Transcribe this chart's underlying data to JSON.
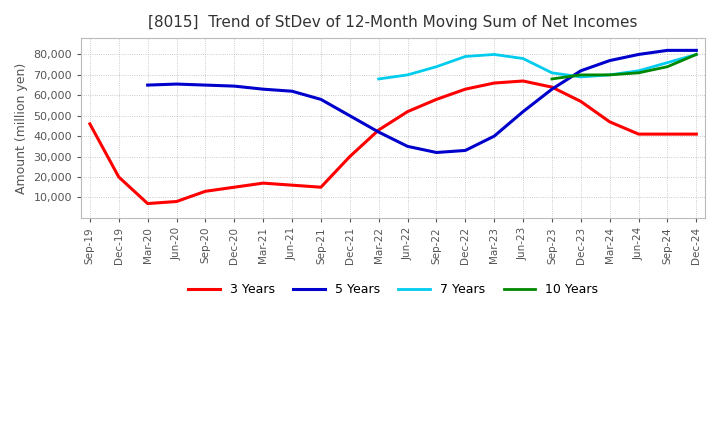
{
  "title": "[8015]  Trend of StDev of 12-Month Moving Sum of Net Incomes",
  "ylabel": "Amount (million yen)",
  "ylim": [
    0,
    88000
  ],
  "yticks": [
    10000,
    20000,
    30000,
    40000,
    50000,
    60000,
    70000,
    80000
  ],
  "background_color": "#ffffff",
  "plot_bg_color": "#ffffff",
  "grid_color": "#aaaaaa",
  "legend_labels": [
    "3 Years",
    "5 Years",
    "7 Years",
    "10 Years"
  ],
  "legend_colors": [
    "#ff0000",
    "#0000cc",
    "#00ccee",
    "#008800"
  ],
  "x_labels": [
    "Sep-19",
    "Dec-19",
    "Mar-20",
    "Jun-20",
    "Sep-20",
    "Dec-20",
    "Mar-21",
    "Jun-21",
    "Sep-21",
    "Dec-21",
    "Mar-22",
    "Jun-22",
    "Sep-22",
    "Dec-22",
    "Mar-23",
    "Jun-23",
    "Sep-23",
    "Dec-23",
    "Mar-24",
    "Jun-24",
    "Sep-24",
    "Dec-24"
  ],
  "series_3y": [
    46000,
    20000,
    7000,
    8000,
    13000,
    15000,
    17000,
    16000,
    15000,
    30000,
    43000,
    52000,
    58000,
    63000,
    66000,
    67000,
    64000,
    57000,
    47000,
    41000,
    41000,
    41000
  ],
  "series_5y": [
    null,
    null,
    65000,
    65500,
    65000,
    64500,
    63000,
    62000,
    58000,
    50000,
    42000,
    35000,
    32000,
    33000,
    40000,
    52000,
    63000,
    72000,
    77000,
    80000,
    82000,
    82000
  ],
  "series_7y": [
    null,
    null,
    null,
    null,
    null,
    null,
    null,
    null,
    null,
    null,
    68000,
    70000,
    74000,
    79000,
    80000,
    78000,
    71000,
    69000,
    70000,
    72000,
    76000,
    80000
  ],
  "series_10y": [
    null,
    null,
    null,
    null,
    null,
    null,
    null,
    null,
    null,
    null,
    null,
    null,
    null,
    null,
    null,
    null,
    68000,
    70000,
    70000,
    71000,
    74000,
    80000
  ]
}
